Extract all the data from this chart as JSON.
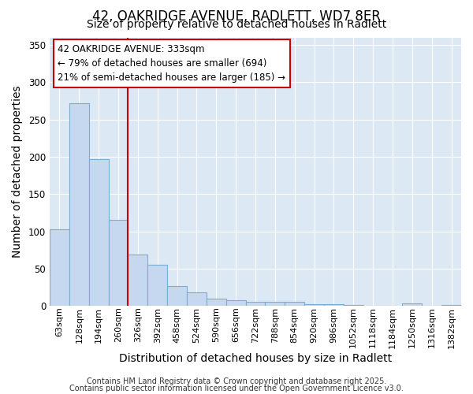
{
  "title1": "42, OAKRIDGE AVENUE, RADLETT, WD7 8ER",
  "title2": "Size of property relative to detached houses in Radlett",
  "xlabel": "Distribution of detached houses by size in Radlett",
  "ylabel": "Number of detached properties",
  "bar_labels": [
    "63sqm",
    "128sqm",
    "194sqm",
    "260sqm",
    "326sqm",
    "392sqm",
    "458sqm",
    "524sqm",
    "590sqm",
    "656sqm",
    "722sqm",
    "788sqm",
    "854sqm",
    "920sqm",
    "986sqm",
    "1052sqm",
    "1118sqm",
    "1184sqm",
    "1250sqm",
    "1316sqm",
    "1382sqm"
  ],
  "bar_values": [
    103,
    272,
    197,
    115,
    69,
    55,
    27,
    18,
    10,
    8,
    5,
    5,
    5,
    2,
    2,
    1,
    0,
    0,
    3,
    0,
    1
  ],
  "bar_color": "#c5d8f0",
  "bar_edge_color": "#7aadd4",
  "vline_x": 3.5,
  "vline_color": "#cc0000",
  "annotation_line1": "42 OAKRIDGE AVENUE: 333sqm",
  "annotation_line2": "← 79% of detached houses are smaller (694)",
  "annotation_line3": "21% of semi-detached houses are larger (185) →",
  "annotation_box_color": "#cc0000",
  "ylim": [
    0,
    360
  ],
  "yticks": [
    0,
    50,
    100,
    150,
    200,
    250,
    300,
    350
  ],
  "background_color": "#dde8f5",
  "footer_line1": "Contains HM Land Registry data © Crown copyright and database right 2025.",
  "footer_line2": "Contains public sector information licensed under the Open Government Licence v3.0.",
  "title_fontsize": 12,
  "subtitle_fontsize": 10,
  "axis_label_fontsize": 10,
  "tick_fontsize": 8,
  "annotation_fontsize": 8.5,
  "footer_fontsize": 7
}
